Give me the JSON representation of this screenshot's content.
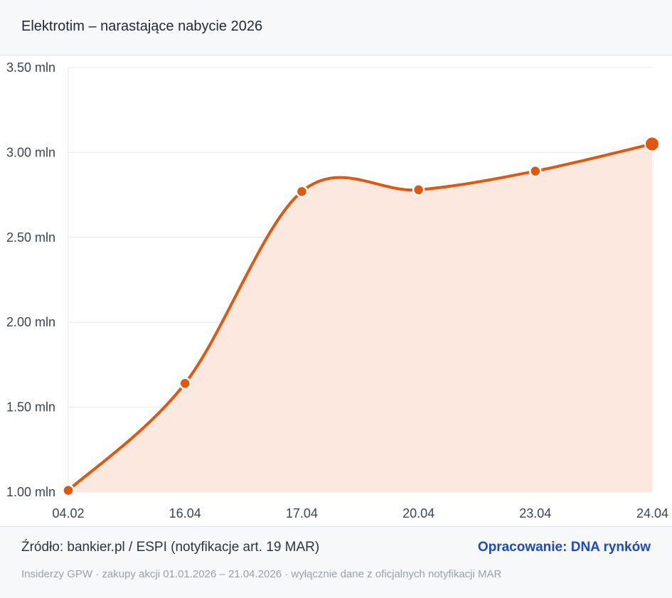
{
  "header": {
    "title": "Elektrotim – narastające nabycie 2026"
  },
  "chart_data": {
    "type": "line",
    "categories": [
      "04.02",
      "16.04",
      "17.04",
      "20.04",
      "23.04",
      "24.04"
    ],
    "values": [
      1.01,
      1.64,
      2.77,
      2.78,
      2.89,
      3.05
    ],
    "value_unit": "mln",
    "ylim": [
      1.0,
      3.5
    ],
    "yticks": [
      1.0,
      1.5,
      2.0,
      2.5,
      3.0,
      3.5
    ],
    "ytick_labels": [
      "1.00 mln",
      "1.50 mln",
      "2.00 mln",
      "2.50 mln",
      "3.00 mln",
      "3.50 mln"
    ],
    "grid": true,
    "area_fill": true,
    "colors": {
      "line": "#e0570f",
      "area": "#fce8de",
      "grid": "#e4e8ed"
    }
  },
  "footer": {
    "source": "Źródło: bankier.pl / ESPI (notyfikacje art. 19 MAR)",
    "credit": "Opracowanie: DNA rynków",
    "note": "Insiderzy GPW · zakupy akcji 01.01.2026 – 21.04.2026 · wyłącznie dane z oficjalnych notyfikacji MAR"
  }
}
